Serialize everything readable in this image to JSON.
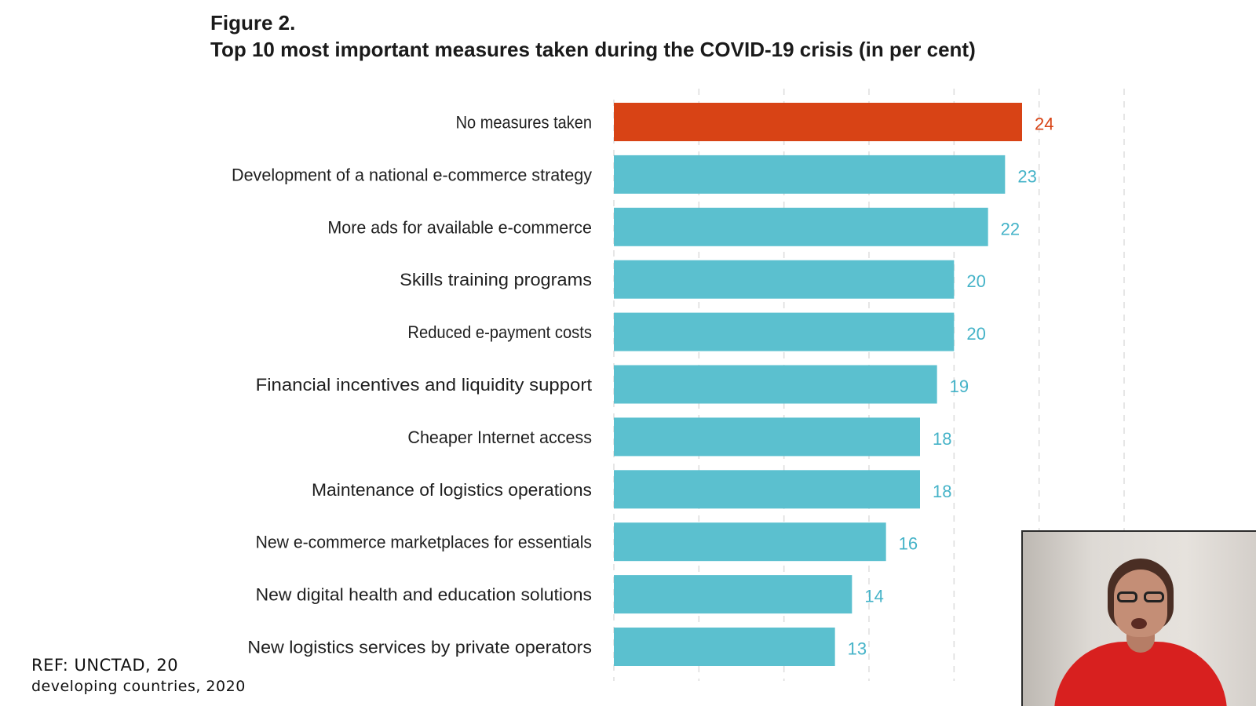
{
  "figure": {
    "label": "Figure 2.",
    "title": "Top 10 most important measures taken during the COVID-19 crisis (in per cent)"
  },
  "reference": {
    "line1": "REF: UNCTAD, 20",
    "line2": "developing countries, 2020"
  },
  "colors": {
    "highlight_bar": "#d84315",
    "default_bar": "#5bc0cf",
    "highlight_label": "#d84315",
    "default_label": "#45b3c8",
    "grid": "#dddddd"
  },
  "chart_data": {
    "type": "bar",
    "orientation": "horizontal",
    "title": "Top 10 most important measures taken during the COVID-19 crisis (in per cent)",
    "categories": [
      "No measures taken",
      "Development of a national e-commerce strategy",
      "More ads for available e-commerce",
      "Skills training programs",
      "Reduced e-payment costs",
      "Financial incentives and liquidity support",
      "Cheaper Internet access",
      "Maintenance of logistics operations",
      "New e-commerce marketplaces for essentials",
      "New digital health and education solutions",
      "New logistics services by private operators"
    ],
    "values": [
      24,
      23,
      22,
      20,
      20,
      19,
      18,
      18,
      16,
      14,
      13
    ],
    "highlight_index": 0,
    "xlim": [
      0,
      30
    ],
    "grid": true,
    "data_labels": true
  },
  "webcam": {
    "presenter": "video-feed"
  }
}
